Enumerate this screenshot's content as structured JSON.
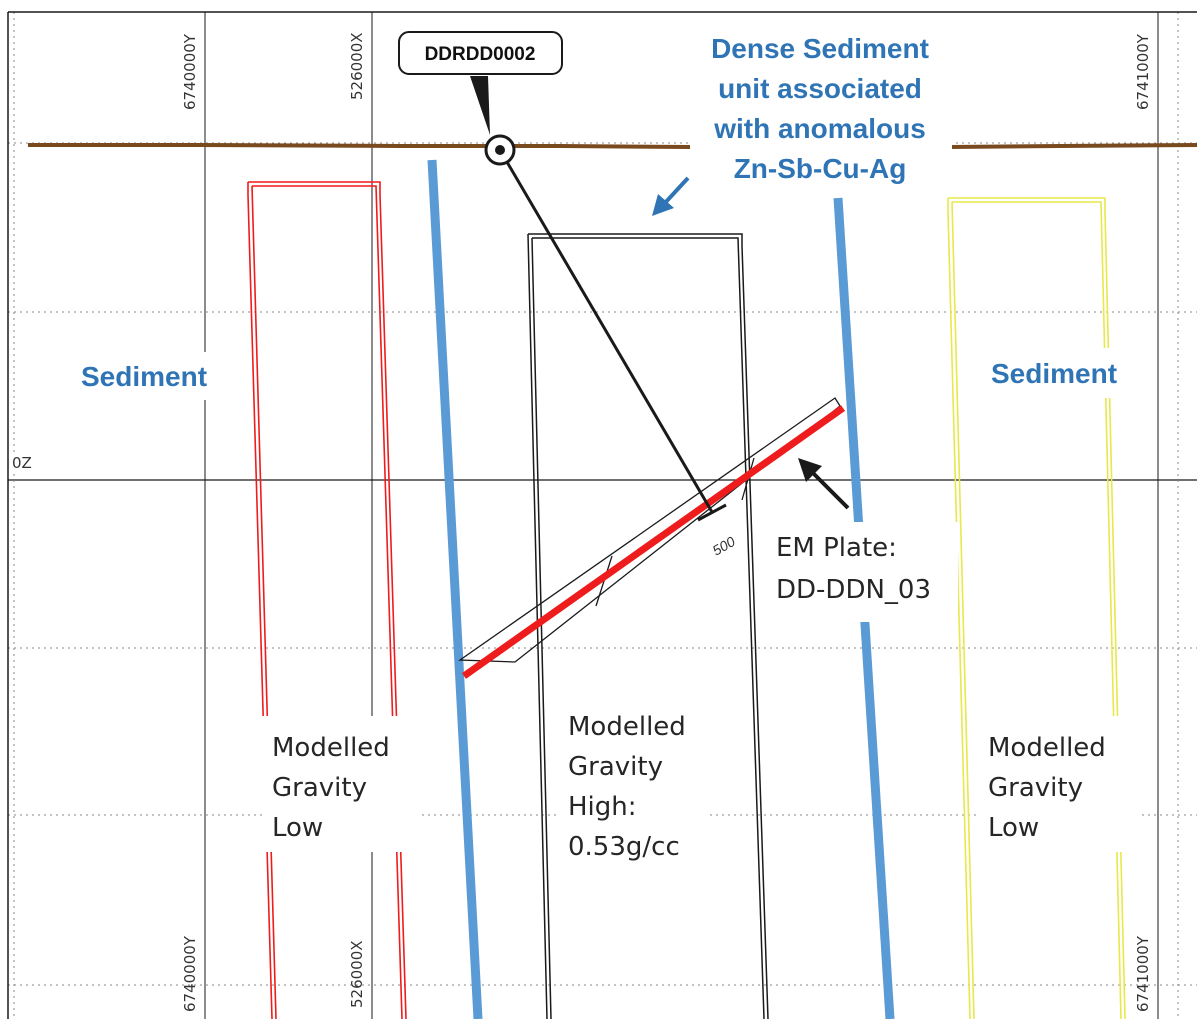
{
  "grid_labels": {
    "top_left_y": "6740000Y",
    "top_x": "526000X",
    "top_right_y": "6741000Y",
    "bottom_left_y": "6740000Y",
    "bottom_x": "526000X",
    "bottom_right_y": "6741000Y",
    "z_label": "0Z",
    "depth_marker": "500"
  },
  "drillhole": {
    "name": "DDRDD0002"
  },
  "annotations": {
    "dense_sediment": [
      "Dense Sediment",
      "unit associated",
      "with anomalous",
      "Zn-Sb-Cu-Ag"
    ],
    "sediment_left": "Sediment",
    "sediment_right": "Sediment",
    "em_plate": [
      "EM Plate:",
      "DD-DDN_03"
    ],
    "gravity_low_left": [
      "Modelled",
      "Gravity",
      "Low"
    ],
    "gravity_high": [
      "Modelled",
      "Gravity",
      "High:",
      "0.53g/cc"
    ],
    "gravity_low_right": [
      "Modelled",
      "Gravity",
      "Low"
    ]
  },
  "colors": {
    "surface": "#7a4a1f",
    "blue_contact": "#5b9bd5",
    "em_plate": "#ee1c1c",
    "gravity_low_left": "#ee1c1c",
    "gravity_high": "#1a1a1a",
    "gravity_low_right": "#e8e84a",
    "label_blue": "#2f74b5",
    "arrow_blue": "#2f74b5"
  }
}
